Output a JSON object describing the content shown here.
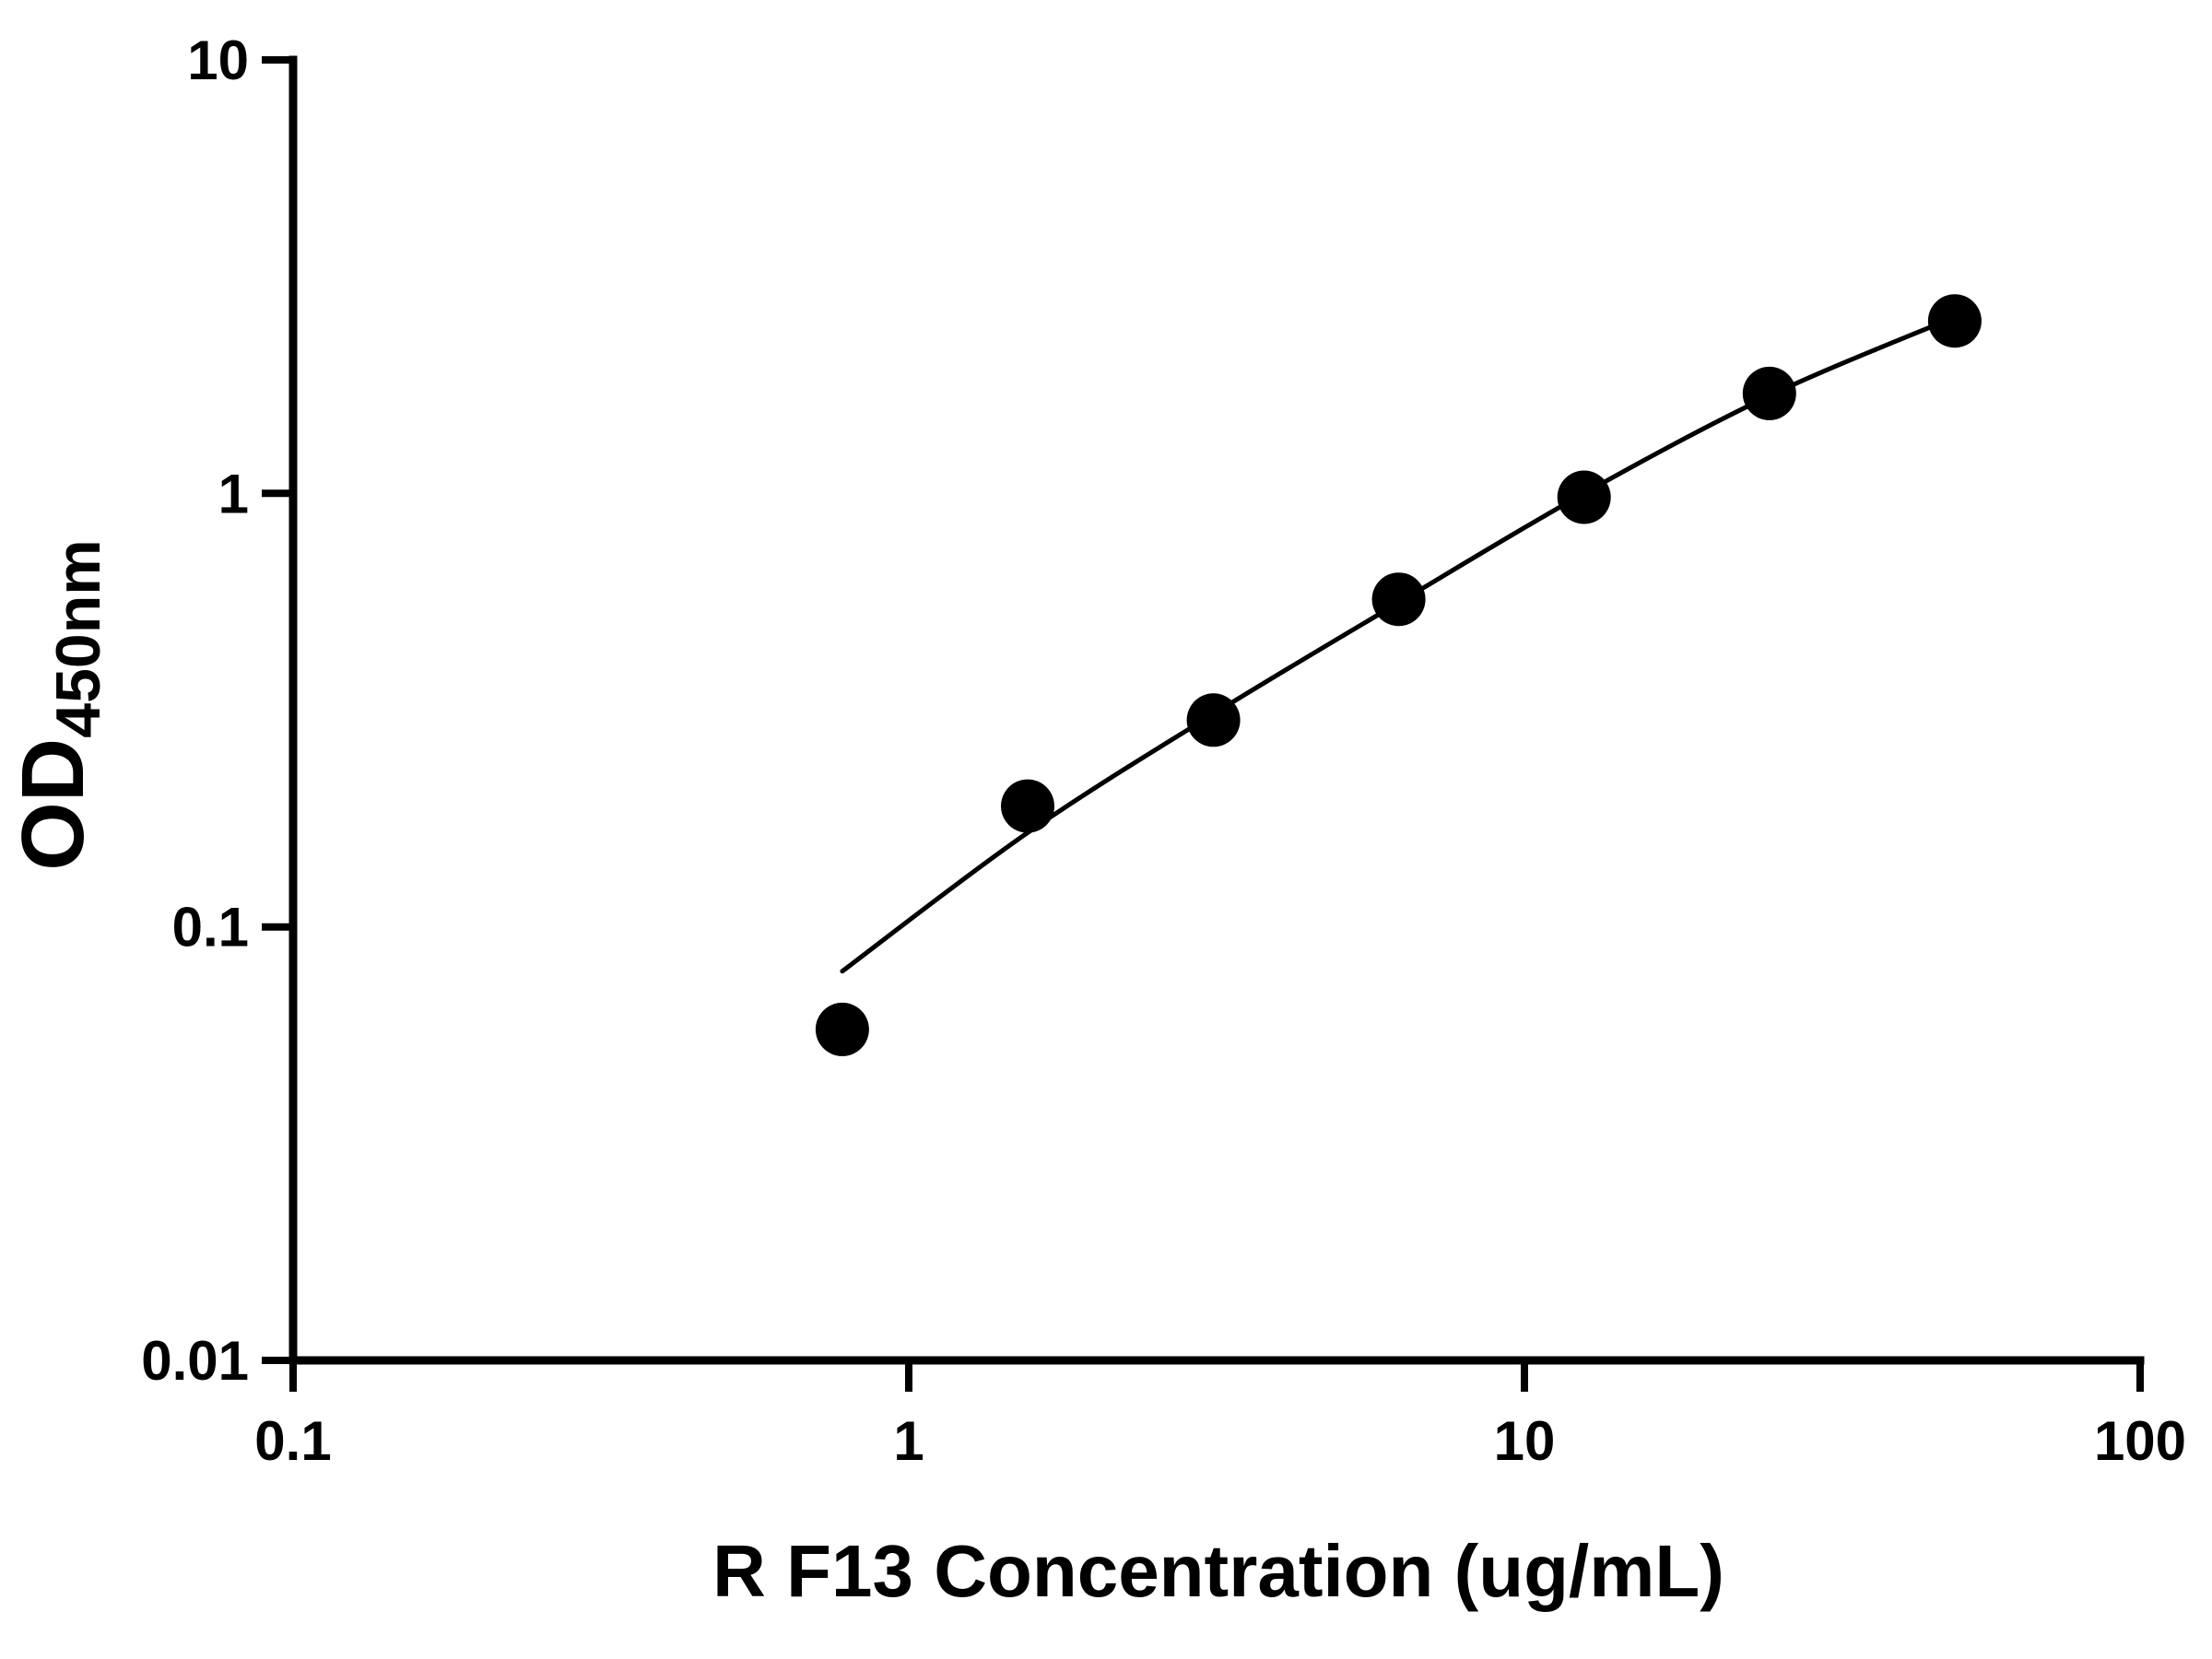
{
  "page": {
    "background": "#ffffff"
  },
  "chart_data": {
    "type": "scatter",
    "title": "",
    "xlabel": "R F13 Concentration (ug/mL)",
    "ylabel": "OD",
    "ylabel_subscript": "450nm",
    "x_scale": "log",
    "y_scale": "log",
    "xlim": [
      0.1,
      100
    ],
    "ylim": [
      0.01,
      10
    ],
    "x_ticks": [
      0.1,
      1,
      10,
      100
    ],
    "x_tick_labels": [
      "0.1",
      "1",
      "10",
      "100"
    ],
    "y_ticks": [
      0.01,
      0.1,
      1,
      10
    ],
    "y_tick_labels": [
      "0.01",
      "0.1",
      "1",
      "10"
    ],
    "grid": false,
    "legend": null,
    "marker_color": "#000000",
    "line_color": "#000000",
    "points": [
      {
        "x": 0.78,
        "y": 0.058
      },
      {
        "x": 1.56,
        "y": 0.19
      },
      {
        "x": 3.125,
        "y": 0.3
      },
      {
        "x": 6.25,
        "y": 0.57
      },
      {
        "x": 12.5,
        "y": 0.98
      },
      {
        "x": 25,
        "y": 1.7
      },
      {
        "x": 50,
        "y": 2.5
      }
    ],
    "fit_curve": [
      {
        "x": 0.78,
        "y": 0.079
      },
      {
        "x": 1.56,
        "y": 0.165
      },
      {
        "x": 3.125,
        "y": 0.31
      },
      {
        "x": 6.25,
        "y": 0.56
      },
      {
        "x": 12.5,
        "y": 1.0
      },
      {
        "x": 25,
        "y": 1.68
      },
      {
        "x": 50,
        "y": 2.55
      }
    ]
  }
}
